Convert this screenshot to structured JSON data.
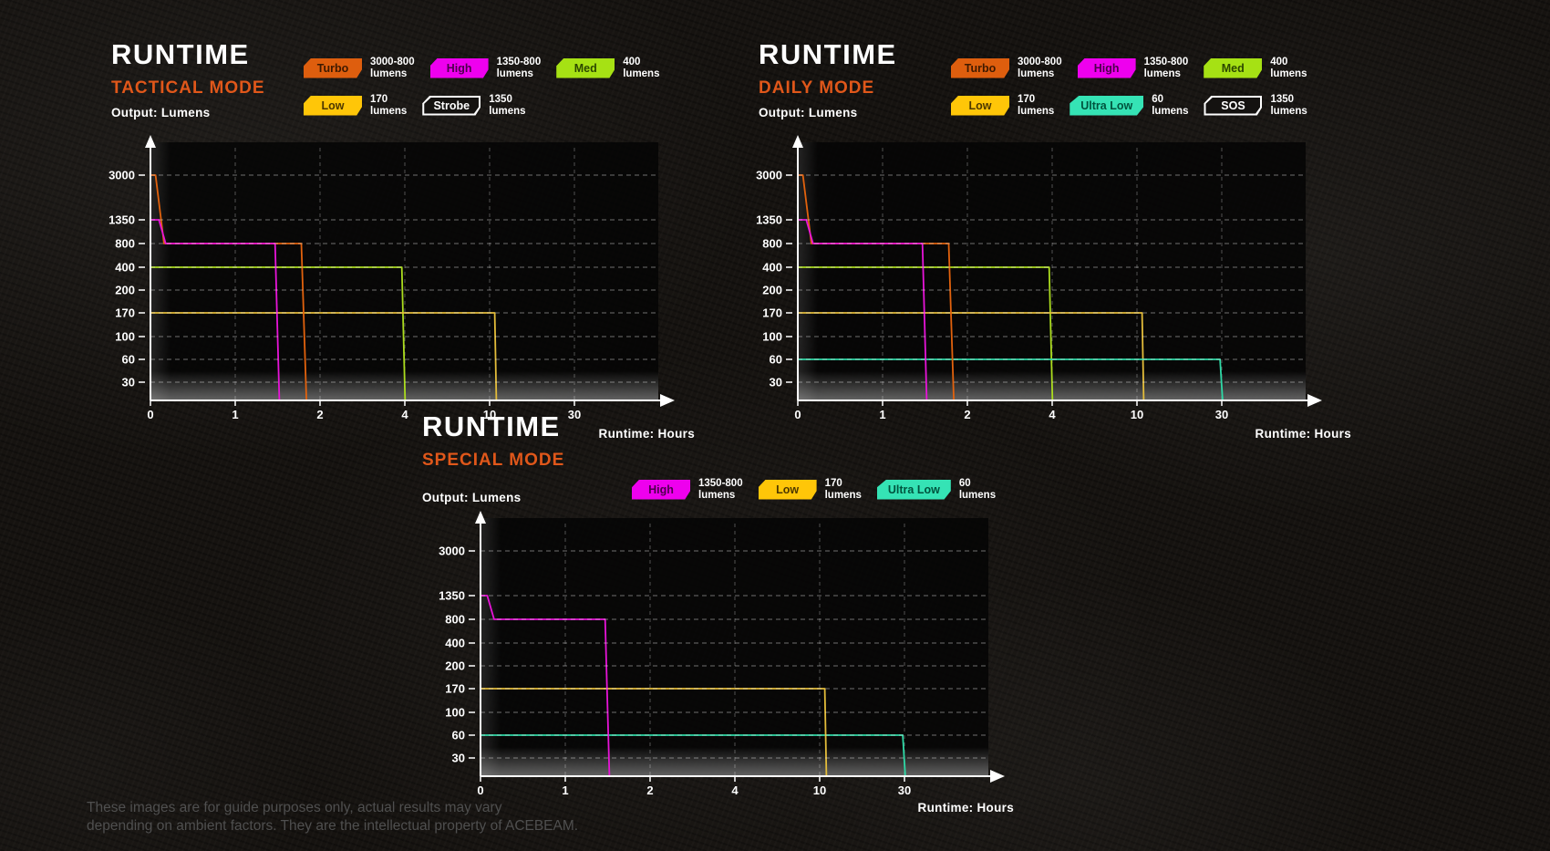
{
  "colors": {
    "accent_orange": "#e0571a",
    "text_white": "#ffffff",
    "footer_text": "#4f4f4f"
  },
  "footer": {
    "line1": "These images are for guide purposes only, actual results may vary",
    "line2": "depending on ambient factors. They are the intellectual property of ACEBEAM."
  },
  "chart_data": [
    {
      "type": "line",
      "title": "RUNTIME",
      "subtitle": "TACTICAL MODE",
      "ylabel": "Output: Lumens",
      "xlabel": "Runtime: Hours",
      "x_ticks": [
        0,
        1,
        2,
        4,
        10,
        30
      ],
      "y_ticks": [
        3000,
        1350,
        800,
        400,
        200,
        170,
        100,
        60,
        30
      ],
      "legend_rows": [
        [
          {
            "label": "Turbo",
            "value": "3000-800",
            "unit": "lumens",
            "fill": "#de5e0e",
            "text": "#3f1a00",
            "outline": false
          },
          {
            "label": "High",
            "value": "1350-800",
            "unit": "lumens",
            "fill": "#ee00ee",
            "text": "#4d004d",
            "outline": false
          },
          {
            "label": "Med",
            "value": "400",
            "unit": "lumens",
            "fill": "#a6e114",
            "text": "#2c4700",
            "outline": false
          }
        ],
        [
          {
            "label": "Low",
            "value": "170",
            "unit": "lumens",
            "fill": "#ffc608",
            "text": "#4d3800",
            "outline": false
          },
          {
            "label": "Strobe",
            "value": "1350",
            "unit": "lumens",
            "fill": "none",
            "text": "#ffffff",
            "outline": true
          }
        ]
      ],
      "series": [
        {
          "name": "Med",
          "color": "#abdc1e",
          "points": [
            [
              0,
              400
            ],
            [
              3.93,
              400
            ],
            [
              4.02,
              0
            ]
          ]
        },
        {
          "name": "Low",
          "color": "#e3bc3a",
          "points": [
            [
              0,
              170
            ],
            [
              11.2,
              170
            ],
            [
              11.6,
              0
            ]
          ]
        },
        {
          "name": "Turbo",
          "color": "#e2620d",
          "points": [
            [
              0,
              3000
            ],
            [
              0.06,
              3000
            ],
            [
              0.16,
              800
            ],
            [
              1.78,
              800
            ],
            [
              1.84,
              0
            ]
          ]
        },
        {
          "name": "High",
          "color": "#e714d8",
          "points": [
            [
              0,
              1350
            ],
            [
              0.1,
              1350
            ],
            [
              0.18,
              800
            ],
            [
              1.47,
              800
            ],
            [
              1.52,
              0
            ]
          ]
        }
      ]
    },
    {
      "type": "line",
      "title": "RUNTIME",
      "subtitle": "DAILY MODE",
      "ylabel": "Output: Lumens",
      "xlabel": "Runtime: Hours",
      "x_ticks": [
        0,
        1,
        2,
        4,
        10,
        30
      ],
      "y_ticks": [
        3000,
        1350,
        800,
        400,
        200,
        170,
        100,
        60,
        30
      ],
      "legend_rows": [
        [
          {
            "label": "Turbo",
            "value": "3000-800",
            "unit": "lumens",
            "fill": "#de5e0e",
            "text": "#3f1a00",
            "outline": false
          },
          {
            "label": "High",
            "value": "1350-800",
            "unit": "lumens",
            "fill": "#ee00ee",
            "text": "#4d004d",
            "outline": false
          },
          {
            "label": "Med",
            "value": "400",
            "unit": "lumens",
            "fill": "#a6e114",
            "text": "#2c4700",
            "outline": false
          }
        ],
        [
          {
            "label": "Low",
            "value": "170",
            "unit": "lumens",
            "fill": "#ffc608",
            "text": "#4d3800",
            "outline": false
          },
          {
            "label": "Ultra Low",
            "value": "60",
            "unit": "lumens",
            "fill": "#35e3b5",
            "text": "#00543e",
            "outline": false
          },
          {
            "label": "SOS",
            "value": "1350",
            "unit": "lumens",
            "fill": "none",
            "text": "#ffffff",
            "outline": true
          }
        ]
      ],
      "series": [
        {
          "name": "Med",
          "color": "#abdc1e",
          "points": [
            [
              0,
              400
            ],
            [
              3.93,
              400
            ],
            [
              4.02,
              0
            ]
          ]
        },
        {
          "name": "Low",
          "color": "#e3bc3a",
          "points": [
            [
              0,
              170
            ],
            [
              11.2,
              170
            ],
            [
              11.6,
              0
            ]
          ]
        },
        {
          "name": "Ultra Low",
          "color": "#2ed9a6",
          "points": [
            [
              0,
              60
            ],
            [
              29.6,
              60
            ],
            [
              30.2,
              0
            ]
          ]
        },
        {
          "name": "Turbo",
          "color": "#e2620d",
          "points": [
            [
              0,
              3000
            ],
            [
              0.06,
              3000
            ],
            [
              0.16,
              800
            ],
            [
              1.78,
              800
            ],
            [
              1.84,
              0
            ]
          ]
        },
        {
          "name": "High",
          "color": "#e714d8",
          "points": [
            [
              0,
              1350
            ],
            [
              0.1,
              1350
            ],
            [
              0.18,
              800
            ],
            [
              1.47,
              800
            ],
            [
              1.52,
              0
            ]
          ]
        }
      ]
    },
    {
      "type": "line",
      "title": "RUNTIME",
      "subtitle": "SPECIAL MODE",
      "ylabel": "Output: Lumens",
      "xlabel": "Runtime: Hours",
      "x_ticks": [
        0,
        1,
        2,
        4,
        10,
        30
      ],
      "y_ticks": [
        3000,
        1350,
        800,
        400,
        200,
        170,
        100,
        60,
        30
      ],
      "legend_rows": [
        [
          {
            "label": "High",
            "value": "1350-800",
            "unit": "lumens",
            "fill": "#ee00ee",
            "text": "#4d004d",
            "outline": false
          },
          {
            "label": "Low",
            "value": "170",
            "unit": "lumens",
            "fill": "#ffc608",
            "text": "#4d3800",
            "outline": false
          },
          {
            "label": "Ultra Low",
            "value": "60",
            "unit": "lumens",
            "fill": "#35e3b5",
            "text": "#00543e",
            "outline": false
          }
        ]
      ],
      "series": [
        {
          "name": "Ultra Low",
          "color": "#2ed9a6",
          "points": [
            [
              0,
              60
            ],
            [
              29.6,
              60
            ],
            [
              30.2,
              0
            ]
          ]
        },
        {
          "name": "Low",
          "color": "#e3bc3a",
          "points": [
            [
              0,
              170
            ],
            [
              11.2,
              170
            ],
            [
              11.6,
              0
            ]
          ]
        },
        {
          "name": "High",
          "color": "#e714d8",
          "points": [
            [
              0,
              1350
            ],
            [
              0.08,
              1350
            ],
            [
              0.16,
              800
            ],
            [
              1.47,
              800
            ],
            [
              1.52,
              0
            ]
          ]
        }
      ]
    }
  ]
}
